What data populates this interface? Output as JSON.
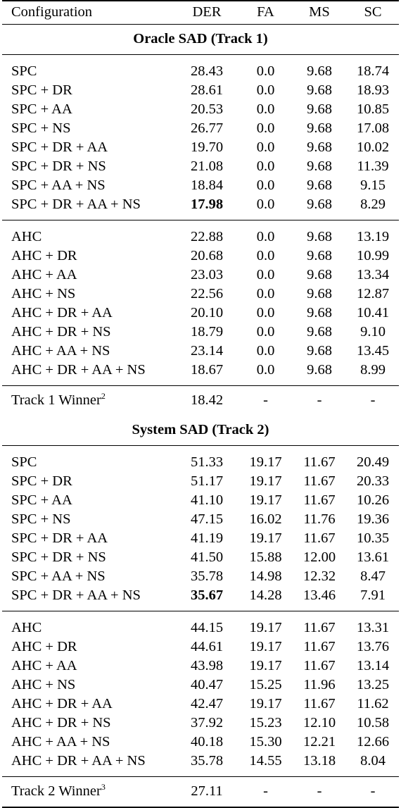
{
  "table": {
    "headers": [
      "Configuration",
      "DER",
      "FA",
      "MS",
      "SC"
    ],
    "sections": [
      {
        "title": "Oracle SAD (Track 1)",
        "groups": [
          [
            [
              "SPC",
              "28.43",
              "0.0",
              "9.68",
              "18.74"
            ],
            [
              "SPC + DR",
              "28.61",
              "0.0",
              "9.68",
              "18.93"
            ],
            [
              "SPC + AA",
              "20.53",
              "0.0",
              "9.68",
              "10.85"
            ],
            [
              "SPC + NS",
              "26.77",
              "0.0",
              "9.68",
              "17.08"
            ],
            [
              "SPC + DR + AA",
              "19.70",
              "0.0",
              "9.68",
              "10.02"
            ],
            [
              "SPC + DR + NS",
              "21.08",
              "0.0",
              "9.68",
              "11.39"
            ],
            [
              "SPC + AA + NS",
              "18.84",
              "0.0",
              "9.68",
              "9.15"
            ],
            [
              "SPC + DR + AA + NS",
              "17.98",
              "0.0",
              "9.68",
              "8.29"
            ]
          ],
          [
            [
              "AHC",
              "22.88",
              "0.0",
              "9.68",
              "13.19"
            ],
            [
              "AHC + DR",
              "20.68",
              "0.0",
              "9.68",
              "10.99"
            ],
            [
              "AHC + AA",
              "23.03",
              "0.0",
              "9.68",
              "13.34"
            ],
            [
              "AHC + NS",
              "22.56",
              "0.0",
              "9.68",
              "12.87"
            ],
            [
              "AHC + DR + AA",
              "20.10",
              "0.0",
              "9.68",
              "10.41"
            ],
            [
              "AHC + DR + NS",
              "18.79",
              "0.0",
              "9.68",
              "9.10"
            ],
            [
              "AHC + AA + NS",
              "23.14",
              "0.0",
              "9.68",
              "13.45"
            ],
            [
              "AHC + DR + AA + NS",
              "18.67",
              "0.0",
              "9.68",
              "8.99"
            ]
          ]
        ],
        "bold_row": 7,
        "winner": {
          "label": "Track 1 Winner",
          "sup": "2",
          "values": [
            "18.42",
            "-",
            "-",
            "-"
          ]
        }
      },
      {
        "title": "System SAD (Track 2)",
        "groups": [
          [
            [
              "SPC",
              "51.33",
              "19.17",
              "11.67",
              "20.49"
            ],
            [
              "SPC + DR",
              "51.17",
              "19.17",
              "11.67",
              "20.33"
            ],
            [
              "SPC + AA",
              "41.10",
              "19.17",
              "11.67",
              "10.26"
            ],
            [
              "SPC + NS",
              "47.15",
              "16.02",
              "11.76",
              "19.36"
            ],
            [
              "SPC + DR + AA",
              "41.19",
              "19.17",
              "11.67",
              "10.35"
            ],
            [
              "SPC + DR + NS",
              "41.50",
              "15.88",
              "12.00",
              "13.61"
            ],
            [
              "SPC + AA + NS",
              "35.78",
              "14.98",
              "12.32",
              "8.47"
            ],
            [
              "SPC + DR + AA + NS",
              "35.67",
              "14.28",
              "13.46",
              "7.91"
            ]
          ],
          [
            [
              "AHC",
              "44.15",
              "19.17",
              "11.67",
              "13.31"
            ],
            [
              "AHC + DR",
              "44.61",
              "19.17",
              "11.67",
              "13.76"
            ],
            [
              "AHC + AA",
              "43.98",
              "19.17",
              "11.67",
              "13.14"
            ],
            [
              "AHC + NS",
              "40.47",
              "15.25",
              "11.96",
              "13.25"
            ],
            [
              "AHC + DR + AA",
              "42.47",
              "19.17",
              "11.67",
              "11.62"
            ],
            [
              "AHC + DR + NS",
              "37.92",
              "15.23",
              "12.10",
              "10.58"
            ],
            [
              "AHC + AA + NS",
              "40.18",
              "15.30",
              "12.21",
              "12.66"
            ],
            [
              "AHC + DR + AA + NS",
              "35.78",
              "14.55",
              "13.18",
              "8.04"
            ]
          ]
        ],
        "bold_row": 7,
        "winner": {
          "label": "Track 2 Winner",
          "sup": "3",
          "values": [
            "27.11",
            "-",
            "-",
            "-"
          ]
        }
      }
    ]
  }
}
